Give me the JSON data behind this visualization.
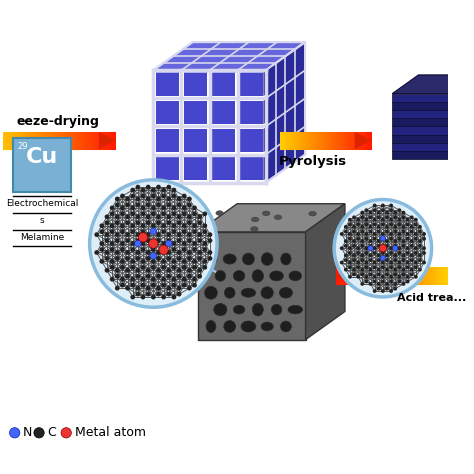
{
  "bg_color": "#ffffff",
  "freeze_drying_label": "eeze-drying",
  "pyrolysis_label": "Pyrolysis",
  "acid_treatment_label": "Acid trea...",
  "periodic_element": "Cu",
  "periodic_number": "29",
  "periodic_label1": "Electrochemical",
  "periodic_label2": "s",
  "periodic_label3": "Melamine",
  "cube_front": "#4646cc",
  "cube_top": "#6666dd",
  "cube_right": "#2a2a99",
  "cube_edge": "#ccccee",
  "cube_gap": "#d8d8ee",
  "pyro_dark1": "#1a1a5e",
  "pyro_dark2": "#232380",
  "pyro_top": "#2a2a6a",
  "pyro_right": "#111145",
  "porous_front": "#686868",
  "porous_top": "#888888",
  "porous_right": "#505050",
  "porous_pore": "#1e1e1e",
  "atom_N_color": "#4466ff",
  "atom_C_color": "#222222",
  "atom_metal_color": "#ee3333",
  "circle_bg": "#deeef8",
  "circle_edge": "#88bbdd",
  "arrow_start": "#ffcc00",
  "arrow_end": "#dd2200",
  "periodic_bg": "#7ab0d4",
  "legend_N_color": "#4466ff",
  "legend_C_color": "#222222",
  "legend_metal_color": "#ee3333"
}
